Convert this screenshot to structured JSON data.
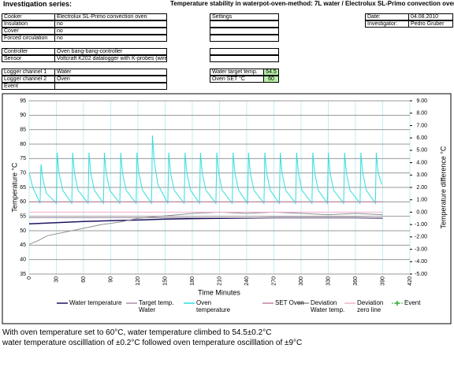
{
  "header": {
    "label": "Investigation series:",
    "title": "Temperature stability in waterpot-oven-method: 7L water / Electrolux SL-Primo convection oven"
  },
  "info": {
    "rows": [
      [
        "Cooker",
        "Electrolux SL-Primo convection oven"
      ],
      [
        "Insulation",
        "no"
      ],
      [
        "Cover",
        "no"
      ],
      [
        "Forced circulation",
        "no"
      ],
      [
        "Controller",
        "Oven bang-bang-controller"
      ],
      [
        "Sensor",
        "Voltcraft K202 datalogger with K-probes (wire)"
      ],
      [
        "Logger channel 1",
        "Water"
      ],
      [
        "Logger channel 2",
        "Oven"
      ],
      [
        "Event"
      ]
    ]
  },
  "settings": {
    "label": "Settings",
    "rows": [
      [
        "Water target temp.",
        54.5
      ],
      [
        "Oven SET °C",
        60
      ]
    ]
  },
  "meta": {
    "rows": [
      [
        "Date:",
        "04.08.2010"
      ],
      [
        "Investigator:",
        "Pedro Gruber"
      ]
    ]
  },
  "chart_data": {
    "type": "line",
    "x_label": "Time Minutes",
    "y_label": "Temperature °C",
    "y2_label": "Temperature difference °C",
    "xlim": [
      0,
      420
    ],
    "xticks": [
      0,
      30,
      60,
      90,
      120,
      150,
      180,
      210,
      240,
      270,
      300,
      330,
      360,
      390,
      420
    ],
    "ylim": [
      35,
      95
    ],
    "yticks": [
      35,
      40,
      45,
      50,
      55,
      60,
      65,
      70,
      75,
      80,
      85,
      90,
      95
    ],
    "y2lim": [
      -5,
      9
    ],
    "y2ticks": [
      {
        "value": -5,
        "label": "-5.00"
      },
      {
        "value": -4,
        "label": "-4.00"
      },
      {
        "value": -3,
        "label": "-3.00"
      },
      {
        "value": -2,
        "label": "-2.00"
      },
      {
        "value": -1,
        "label": "-1.00"
      },
      {
        "value": 0,
        "label": "0.00"
      },
      {
        "value": 1,
        "label": "1.00"
      },
      {
        "value": 2,
        "label": "2.00"
      },
      {
        "value": 3,
        "label": "3.00"
      },
      {
        "value": 4,
        "label": "4.00"
      },
      {
        "value": 5,
        "label": "5.00"
      },
      {
        "value": 6,
        "label": "6.00"
      },
      {
        "value": 7,
        "label": "7.00"
      },
      {
        "value": 8,
        "label": "8.00"
      },
      {
        "value": 9,
        "label": "9.00"
      }
    ],
    "grid": true,
    "legend": "bottom",
    "series": [
      {
        "name": "Water temperature",
        "color": "#1c1660",
        "x": [
          0,
          30,
          60,
          90,
          120,
          150,
          180,
          210,
          240,
          270,
          300,
          330,
          360,
          390
        ],
        "values": [
          52.4,
          52.8,
          53.2,
          53.5,
          53.7,
          54.0,
          54.2,
          54.3,
          54.4,
          54.5,
          54.5,
          54.5,
          54.5,
          54.4
        ]
      },
      {
        "name": "Target temp. Water",
        "color": "#a890a8",
        "x": [
          0,
          390
        ],
        "values": [
          54.5,
          54.5
        ]
      },
      {
        "name": "Oven temperature",
        "color": "#33dede",
        "x": [
          0,
          4,
          12,
          13,
          15,
          19,
          30,
          31,
          33,
          37,
          47,
          48,
          50,
          54,
          65,
          66,
          68,
          72,
          82,
          83,
          85,
          89,
          100,
          101,
          103,
          107,
          118,
          119,
          121,
          125,
          135,
          136,
          138,
          142,
          153,
          154,
          156,
          160,
          171,
          172,
          174,
          178,
          188,
          189,
          191,
          195,
          206,
          207,
          209,
          213,
          224,
          225,
          227,
          231,
          241,
          242,
          244,
          248,
          259,
          260,
          262,
          266,
          276,
          277,
          279,
          283,
          294,
          295,
          297,
          301,
          312,
          313,
          315,
          319,
          329,
          330,
          332,
          336,
          347,
          348,
          350,
          354,
          365,
          366,
          368,
          372,
          382,
          383,
          385,
          389
        ],
        "values": [
          70,
          65,
          59.5,
          73,
          68,
          63,
          59.5,
          77,
          70,
          64,
          59.5,
          77,
          70,
          64,
          59.5,
          77,
          70,
          64,
          59.5,
          77,
          70,
          64,
          59.5,
          77,
          70,
          64,
          59.5,
          77,
          70,
          64,
          59.5,
          83,
          74,
          66,
          59.5,
          77,
          70,
          64,
          59.5,
          77,
          70,
          64,
          59.5,
          77,
          70,
          64,
          59.5,
          77,
          70,
          64,
          59.5,
          77,
          70,
          64,
          59.5,
          77,
          70,
          64,
          59.5,
          77,
          70,
          64,
          59.5,
          77,
          70,
          64,
          59.5,
          77,
          70,
          64,
          59.5,
          77,
          70,
          64,
          59.5,
          77,
          70,
          64,
          59.5,
          77,
          70,
          64,
          59.5,
          77,
          70,
          64,
          59.5,
          77,
          70,
          66
        ]
      },
      {
        "name": "SET Oven",
        "color": "#c080a0",
        "x": [
          0,
          390
        ],
        "values": [
          60,
          60
        ]
      },
      {
        "name": "Deviation Water temp.",
        "color": "#909090",
        "axis": "y2",
        "x": [
          0,
          10,
          20,
          40,
          60,
          80,
          100,
          120,
          150,
          180,
          210,
          240,
          270,
          300,
          330,
          360,
          390
        ],
        "values": [
          -2.6,
          -2.3,
          -1.9,
          -1.6,
          -1.3,
          -1.0,
          -0.8,
          -0.5,
          -0.3,
          -0.1,
          0.0,
          -0.1,
          0.0,
          -0.1,
          -0.2,
          -0.1,
          -0.2
        ]
      },
      {
        "name": "Deviation zero line",
        "color": "#f0b0d0",
        "axis": "y2",
        "x": [
          0,
          390
        ],
        "values": [
          0,
          0
        ]
      },
      {
        "name": "Event",
        "color": "#33aa33",
        "axis": "y2",
        "x": [],
        "values": []
      }
    ]
  },
  "notes": [
    "With oven temperature set to 60°C, water temperature climbed to 54.5±0.2°C",
    "water temperature oscilllation of ±0.2°C followed oven temperature oscilllation of ±9°C"
  ]
}
